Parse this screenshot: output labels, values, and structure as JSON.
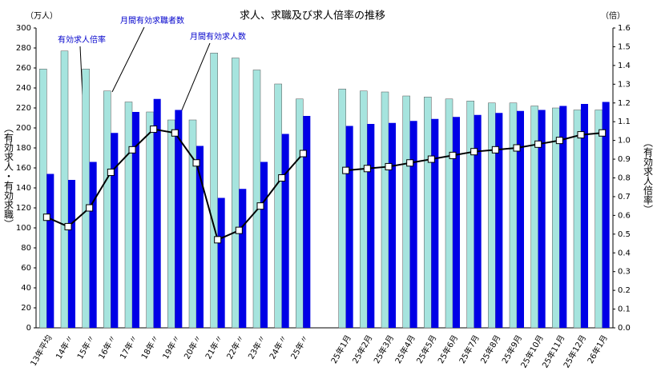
{
  "chart_data": {
    "type": "bar_line",
    "title": "求人、求職及び求人倍率の推移",
    "y_unit": "（万人）",
    "y2_unit": "（倍）",
    "ylabel": "（有効求人・有効求職）",
    "y2label": "（有効求人倍率）",
    "annotations": [
      "月間有効求職者数",
      "有効求人倍率",
      "月間有効求人数"
    ],
    "categories": [
      "13年平均",
      "14年〃",
      "15年〃",
      "16年〃",
      "17年〃",
      "18年〃",
      "19年〃",
      "20年〃",
      "21年〃",
      "22年〃",
      "23年〃",
      "24年〃",
      "25年〃",
      null,
      "25年1月",
      "25年2月",
      "25年3月",
      "25年4月",
      "25年5月",
      "25年6月",
      "25年7月",
      "25年8月",
      "25年9月",
      "25年10月",
      "25年11月",
      "25年12月",
      "26年1月"
    ],
    "series": [
      {
        "name": "月間有効求職者数",
        "color": "#a6e4de",
        "values": [
          259,
          277,
          259,
          237,
          226,
          216,
          208,
          208,
          275,
          270,
          258,
          244,
          229,
          null,
          239,
          237,
          236,
          232,
          231,
          229,
          227,
          225,
          225,
          222,
          220,
          218,
          218
        ]
      },
      {
        "name": "月間有効求人数",
        "color": "#0000e6",
        "values": [
          154,
          148,
          166,
          195,
          216,
          229,
          218,
          182,
          130,
          139,
          166,
          194,
          212,
          null,
          202,
          204,
          205,
          207,
          209,
          211,
          213,
          215,
          217,
          218,
          222,
          224,
          226
        ]
      },
      {
        "name": "有効求人倍率",
        "color": "#000000",
        "axis": "y2",
        "values": [
          0.59,
          0.54,
          0.64,
          0.83,
          0.95,
          1.06,
          1.04,
          0.88,
          0.47,
          0.52,
          0.65,
          0.8,
          0.93,
          null,
          0.84,
          0.85,
          0.86,
          0.88,
          0.9,
          0.92,
          0.94,
          0.95,
          0.96,
          0.98,
          1.0,
          1.03,
          1.04
        ]
      }
    ],
    "ylim": [
      0,
      300
    ],
    "yticks": [
      0,
      20,
      40,
      60,
      80,
      100,
      120,
      140,
      160,
      180,
      200,
      220,
      240,
      260,
      280,
      300
    ],
    "y2lim": [
      0,
      1.6
    ],
    "y2ticks": [
      {
        "value": 0,
        "label": "0.0"
      },
      0.1,
      0.2,
      0.3,
      0.4,
      0.5,
      0.6,
      0.7,
      0.8,
      0.9,
      {
        "value": 1,
        "label": "1.0"
      },
      1.1,
      1.2,
      1.3,
      1.4,
      1.5,
      1.6
    ]
  }
}
